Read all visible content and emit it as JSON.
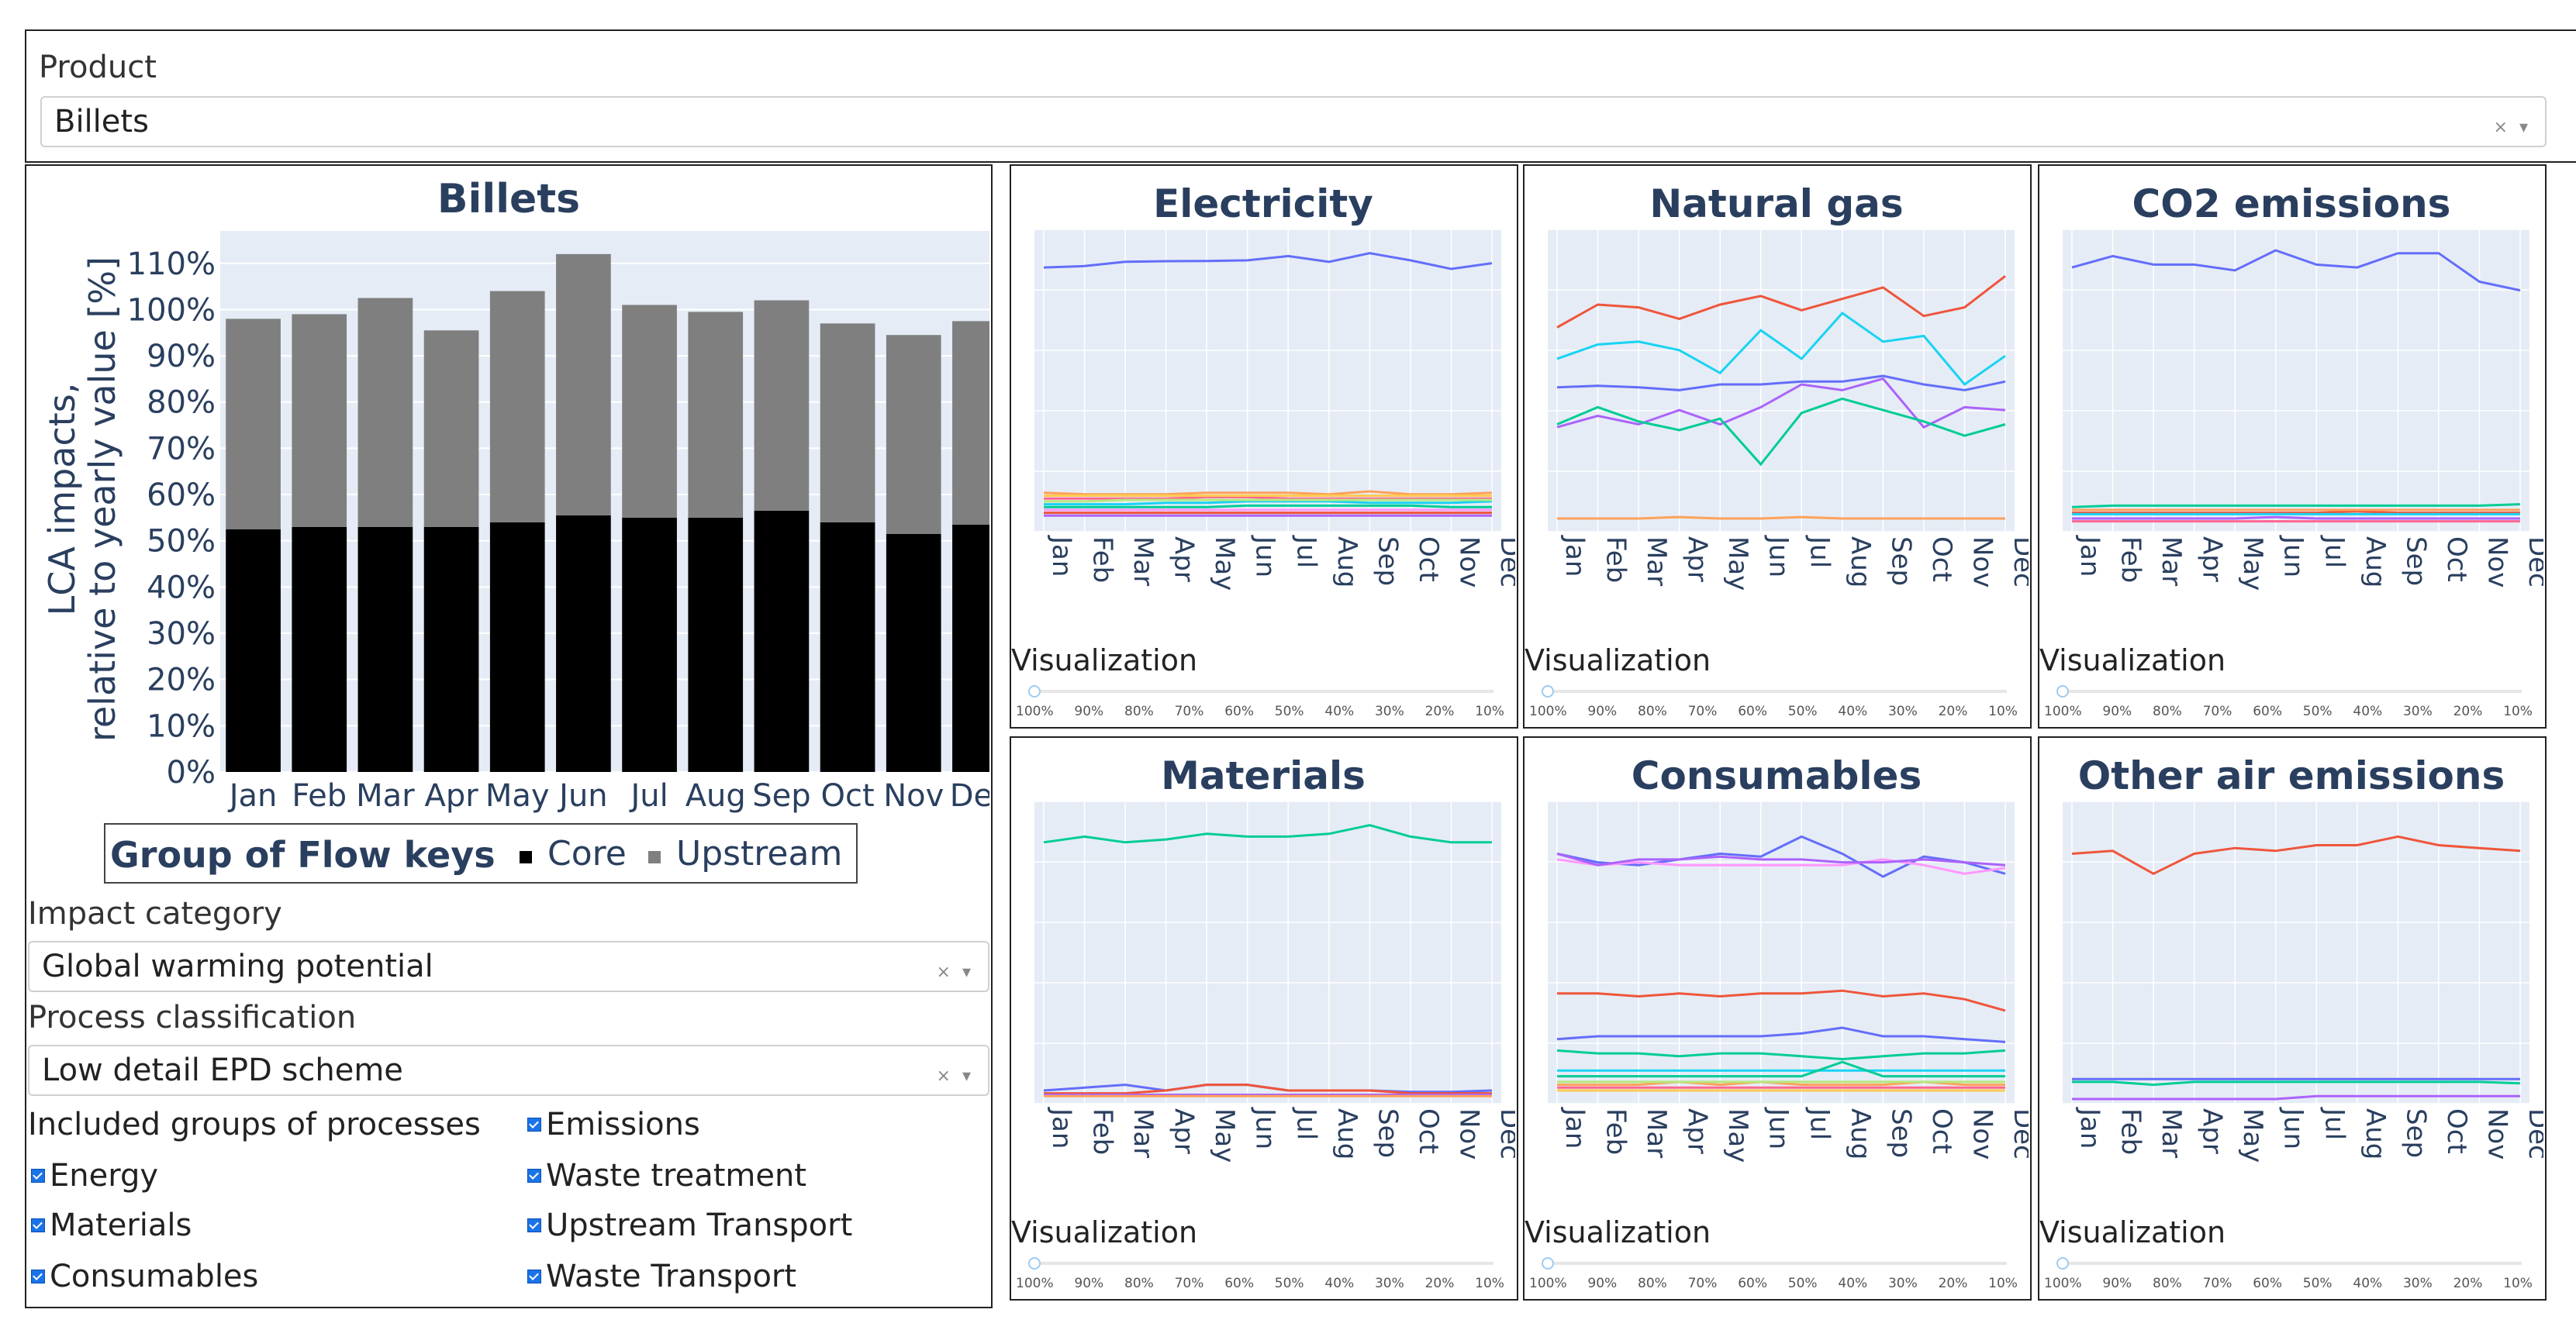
{
  "product": {
    "label": "Product",
    "value": "Billets",
    "controls": "× ▾"
  },
  "main_chart": {
    "title": "Billets",
    "ylabel_line1": "LCA impacts,",
    "ylabel_line2": "relative to yearly value [%]",
    "legend_title": "Group of Flow keys",
    "legend_items": [
      {
        "name": "Core",
        "color": "#000000"
      },
      {
        "name": "Upstream",
        "color": "#7f7f7f"
      }
    ]
  },
  "impact": {
    "label": "Impact category",
    "value": "Global warming potential",
    "controls": "× ▾"
  },
  "process": {
    "label": "Process classification",
    "value": "Low detail EPD scheme",
    "controls": "× ▾"
  },
  "groups": {
    "label": "Included groups of processes",
    "items": [
      "Emissions",
      "Energy",
      "Waste treatment",
      "Materials",
      "Upstream Transport",
      "Consumables",
      "Waste Transport"
    ]
  },
  "visualization": {
    "label": "Visualization",
    "ticks": [
      "100%",
      "90%",
      "80%",
      "70%",
      "60%",
      "50%",
      "40%",
      "30%",
      "20%",
      "10%"
    ]
  },
  "chart_data": [
    {
      "type": "bar",
      "title": "Billets",
      "categories": [
        "Jan",
        "Feb",
        "Mar",
        "Apr",
        "May",
        "Jun",
        "Jul",
        "Aug",
        "Sep",
        "Oct",
        "Nov",
        "Dec"
      ],
      "series": [
        {
          "name": "Core",
          "color": "#000000",
          "values": [
            52.5,
            53,
            53,
            53,
            54,
            55.5,
            55,
            55,
            56.5,
            54,
            51.5,
            53.5
          ]
        },
        {
          "name": "Upstream",
          "color": "#7f7f7f",
          "values": [
            45.5,
            46,
            49.5,
            42.5,
            50,
            56.5,
            46,
            44.5,
            45.5,
            43,
            43,
            44
          ]
        }
      ],
      "yticks": [
        "0%",
        "10%",
        "20%",
        "30%",
        "40%",
        "50%",
        "60%",
        "70%",
        "80%",
        "90%",
        "100%",
        "110%"
      ],
      "ylim": [
        0,
        117
      ],
      "ylabel": "LCA impacts, relative to yearly value [%]",
      "legend": "Group of Flow keys"
    },
    {
      "type": "line",
      "title": "Electricity",
      "categories": [
        "Jan",
        "Feb",
        "Mar",
        "Apr",
        "May",
        "Jun",
        "Jul",
        "Aug",
        "Sep",
        "Oct",
        "Nov",
        "Dec"
      ],
      "ylim": [
        0,
        100
      ],
      "series": [
        {
          "color": "#636efa",
          "values": [
            91,
            91.5,
            93,
            93.2,
            93.3,
            93.5,
            95,
            93,
            96,
            93.5,
            90.5,
            92.5
          ]
        },
        {
          "color": "#ef553b",
          "values": [
            5,
            5,
            5,
            5,
            5,
            5,
            5,
            5,
            5,
            5,
            5,
            5
          ]
        },
        {
          "color": "#00cc96",
          "values": [
            7,
            7,
            7,
            7,
            7,
            7.5,
            7.5,
            7.5,
            7.5,
            7.5,
            7,
            7
          ]
        },
        {
          "color": "#ab63fa",
          "values": [
            4,
            4,
            4,
            4,
            4,
            4,
            4,
            4,
            4,
            4,
            4,
            4
          ]
        },
        {
          "color": "#ffa15a",
          "values": [
            12,
            11.5,
            11.5,
            11.5,
            12,
            12,
            12,
            11.5,
            12.5,
            11.5,
            11.5,
            12
          ]
        },
        {
          "color": "#19d3f3",
          "values": [
            8,
            8,
            8,
            8.5,
            8.5,
            9,
            9,
            9,
            8.5,
            8.5,
            8.5,
            9
          ]
        },
        {
          "color": "#ff6692",
          "values": [
            10,
            10,
            10,
            10,
            10.5,
            10.5,
            10,
            10,
            10,
            10,
            10,
            10
          ]
        },
        {
          "color": "#b6e880",
          "values": [
            9,
            9,
            9.5,
            9.5,
            9.5,
            9.5,
            9.5,
            9.5,
            9.5,
            9.5,
            9.5,
            9.5
          ]
        },
        {
          "color": "#ff97ff",
          "values": [
            6,
            6,
            6,
            6,
            6,
            6,
            6,
            6,
            6,
            6,
            6,
            6
          ]
        },
        {
          "color": "#fecb52",
          "values": [
            11,
            11,
            11,
            11,
            11,
            11,
            11,
            11,
            11,
            11,
            11,
            11
          ]
        }
      ]
    },
    {
      "type": "line",
      "title": "Natural gas",
      "categories": [
        "Jan",
        "Feb",
        "Mar",
        "Apr",
        "May",
        "Jun",
        "Jul",
        "Aug",
        "Sep",
        "Oct",
        "Nov",
        "Dec"
      ],
      "ylim": [
        0,
        100
      ],
      "series": [
        {
          "color": "#ef553b",
          "values": [
            70,
            78,
            77,
            73,
            78,
            81,
            76,
            80,
            84,
            74,
            77,
            88
          ]
        },
        {
          "color": "#19d3f3",
          "values": [
            59,
            64,
            65,
            62,
            54,
            69,
            59,
            75,
            65,
            67,
            50,
            60
          ]
        },
        {
          "color": "#636efa",
          "values": [
            49,
            49.5,
            49,
            48,
            50,
            50,
            51,
            51,
            53,
            50,
            48,
            51
          ]
        },
        {
          "color": "#ab63fa",
          "values": [
            35,
            39,
            36,
            41,
            36,
            42,
            50,
            48,
            52,
            35,
            42,
            41
          ]
        },
        {
          "color": "#00cc96",
          "values": [
            36,
            42,
            37,
            34,
            38,
            22,
            40,
            45,
            41,
            37,
            32,
            36
          ]
        },
        {
          "color": "#ffa15a",
          "values": [
            3,
            3,
            3,
            3.5,
            3,
            3,
            3.5,
            3,
            3,
            3,
            3,
            3
          ]
        }
      ]
    },
    {
      "type": "line",
      "title": "CO2 emissions",
      "categories": [
        "Jan",
        "Feb",
        "Mar",
        "Apr",
        "May",
        "Jun",
        "Jul",
        "Aug",
        "Sep",
        "Oct",
        "Nov",
        "Dec"
      ],
      "ylim": [
        0,
        100
      ],
      "series": [
        {
          "color": "#636efa",
          "values": [
            91,
            95,
            92,
            92,
            90,
            97,
            92,
            91,
            96,
            96,
            86,
            83
          ]
        },
        {
          "color": "#00cc96",
          "values": [
            7,
            7.5,
            7.5,
            7.5,
            7.5,
            7.5,
            7.5,
            7.5,
            7.5,
            7.5,
            7.5,
            8
          ]
        },
        {
          "color": "#ef553b",
          "values": [
            5,
            5,
            5,
            5,
            5,
            5,
            5,
            5.5,
            5,
            5,
            5,
            5
          ]
        },
        {
          "color": "#ab63fa",
          "values": [
            3,
            3,
            3,
            3,
            3,
            3.5,
            3,
            3,
            3,
            3,
            3,
            3
          ]
        },
        {
          "color": "#ffa15a",
          "values": [
            6,
            6,
            6,
            6,
            6,
            6,
            6,
            6,
            6,
            6,
            6,
            6
          ]
        },
        {
          "color": "#19d3f3",
          "values": [
            4.5,
            4.5,
            4.5,
            4.5,
            4.5,
            4.5,
            4.5,
            4.5,
            4.5,
            4.5,
            4.5,
            4.5
          ]
        },
        {
          "color": "#ff6692",
          "values": [
            2,
            2,
            2,
            2,
            2,
            2,
            2,
            2,
            2,
            2,
            2,
            2
          ]
        }
      ]
    },
    {
      "type": "line",
      "title": "Materials",
      "categories": [
        "Jan",
        "Feb",
        "Mar",
        "Apr",
        "May",
        "Jun",
        "Jul",
        "Aug",
        "Sep",
        "Oct",
        "Nov",
        "Dec"
      ],
      "ylim": [
        0,
        100
      ],
      "series": [
        {
          "color": "#00cc96",
          "values": [
            90,
            92,
            90,
            91,
            93,
            92,
            92,
            93,
            96,
            92,
            90,
            90
          ]
        },
        {
          "color": "#636efa",
          "values": [
            3,
            4,
            5,
            3,
            5,
            5,
            3,
            3,
            3,
            2.5,
            2.5,
            3
          ]
        },
        {
          "color": "#ef553b",
          "values": [
            2,
            2,
            2,
            3,
            5,
            5,
            3,
            3,
            3,
            2,
            2,
            2
          ]
        },
        {
          "color": "#ab63fa",
          "values": [
            1.5,
            1.5,
            1.5,
            1.5,
            1.5,
            1.5,
            1.5,
            1.5,
            1.5,
            1.5,
            1.5,
            1.5
          ]
        },
        {
          "color": "#ffa15a",
          "values": [
            1,
            1,
            1,
            1,
            1,
            1,
            1,
            1,
            1,
            1,
            1,
            1
          ]
        }
      ]
    },
    {
      "type": "line",
      "title": "Consumables",
      "categories": [
        "Jan",
        "Feb",
        "Mar",
        "Apr",
        "May",
        "Jun",
        "Jul",
        "Aug",
        "Sep",
        "Oct",
        "Nov",
        "Dec"
      ],
      "ylim": [
        0,
        100
      ],
      "series": [
        {
          "color": "#636efa",
          "values": [
            86,
            83,
            82,
            84,
            86,
            85,
            92,
            86,
            78,
            85,
            83,
            79
          ]
        },
        {
          "color": "#ff97ff",
          "values": [
            84,
            82,
            83,
            82,
            82,
            82,
            82,
            82,
            84,
            82,
            79,
            81
          ]
        },
        {
          "color": "#ab63fa",
          "values": [
            86,
            82,
            84,
            84,
            85,
            84,
            84,
            83,
            83,
            84,
            83,
            82
          ]
        },
        {
          "color": "#ef553b",
          "values": [
            37,
            37,
            36,
            37,
            36,
            37,
            37,
            38,
            36,
            37,
            35,
            31
          ]
        },
        {
          "color": "#636efa",
          "values": [
            21,
            22,
            22,
            22,
            22,
            22,
            23,
            25,
            22,
            22,
            21,
            20
          ]
        },
        {
          "color": "#00cc96",
          "values": [
            17,
            16,
            16,
            15,
            16,
            16,
            15,
            14,
            15,
            16,
            16,
            17
          ]
        },
        {
          "color": "#19d3f3",
          "values": [
            10,
            10,
            10,
            10,
            10,
            10,
            10,
            10,
            10,
            10,
            10,
            10
          ]
        },
        {
          "color": "#00cc96",
          "values": [
            8,
            8,
            8,
            8,
            8,
            8,
            8,
            13,
            8,
            8,
            8,
            8
          ]
        },
        {
          "color": "#ffa15a",
          "values": [
            5,
            5,
            5,
            6,
            5,
            6,
            5,
            5,
            5,
            6,
            5,
            5
          ]
        },
        {
          "color": "#ff6692",
          "values": [
            4,
            4,
            4,
            4,
            4,
            4,
            4,
            4,
            4,
            4,
            4,
            4
          ]
        },
        {
          "color": "#b6e880",
          "values": [
            6,
            6,
            6,
            6,
            6,
            6,
            6,
            6,
            6,
            6,
            6,
            6
          ]
        },
        {
          "color": "#fecb52",
          "values": [
            3,
            3,
            3,
            3,
            3,
            3,
            3,
            3,
            3,
            3,
            3,
            3
          ]
        }
      ]
    },
    {
      "type": "line",
      "title": "Other air emissions",
      "categories": [
        "Jan",
        "Feb",
        "Mar",
        "Apr",
        "May",
        "Jun",
        "Jul",
        "Aug",
        "Sep",
        "Oct",
        "Nov",
        "Dec"
      ],
      "ylim": [
        0,
        100
      ],
      "series": [
        {
          "color": "#ef553b",
          "values": [
            86,
            87,
            79,
            86,
            88,
            87,
            89,
            89,
            92,
            89,
            88,
            87
          ]
        },
        {
          "color": "#636efa",
          "values": [
            7,
            7,
            7,
            7,
            7,
            7,
            7,
            7,
            7,
            7,
            7,
            7
          ]
        },
        {
          "color": "#00cc96",
          "values": [
            6,
            6,
            5,
            6,
            6,
            6,
            6,
            6,
            6,
            6,
            6,
            5.5
          ]
        },
        {
          "color": "#ab63fa",
          "values": [
            0,
            0,
            0,
            0,
            0,
            0,
            1,
            1,
            1,
            1,
            1,
            1
          ]
        }
      ]
    }
  ]
}
